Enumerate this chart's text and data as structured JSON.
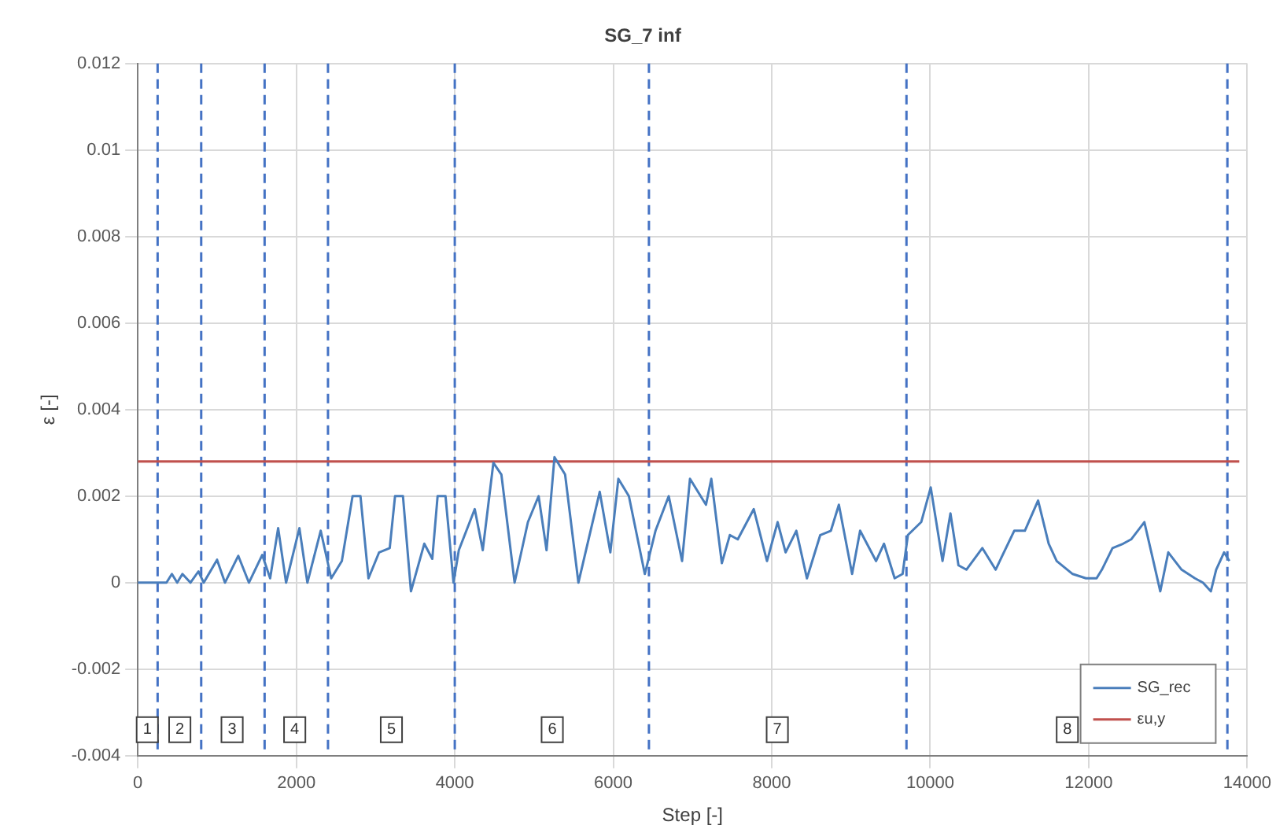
{
  "chart_data": {
    "type": "line",
    "title": "SG_7 inf",
    "xlabel": "Step [-]",
    "ylabel": "ε [-]",
    "xlim": [
      0,
      14000
    ],
    "xticks": [
      0,
      2000,
      4000,
      6000,
      8000,
      10000,
      12000,
      14000
    ],
    "ylim": [
      -0.004,
      0.012
    ],
    "yticks": [
      -0.004,
      -0.002,
      0,
      0.002,
      0.004,
      0.006,
      0.008,
      0.01,
      0.012
    ],
    "grid": true,
    "legend": "bottom right",
    "marker": "none",
    "line_style": "solid",
    "series": [
      {
        "name": "SG_rec",
        "color": "#4a7ebb",
        "x": [
          0,
          362,
          430,
          497,
          563,
          664,
          765,
          832,
          1000,
          1100,
          1268,
          1402,
          1570,
          1670,
          1771,
          1871,
          2039,
          2140,
          2308,
          2441,
          2575,
          2710,
          2810,
          2911,
          3045,
          3179,
          3246,
          3346,
          3447,
          3615,
          3716,
          3783,
          3883,
          3984,
          4051,
          4252,
          4353,
          4487,
          4588,
          4755,
          4923,
          5058,
          5158,
          5258,
          5392,
          5560,
          5829,
          5963,
          6064,
          6197,
          6398,
          6533,
          6700,
          6868,
          6968,
          7069,
          7170,
          7237,
          7370,
          7471,
          7571,
          7773,
          7940,
          8074,
          8175,
          8310,
          8444,
          8612,
          8746,
          8847,
          9014,
          9115,
          9316,
          9416,
          9551,
          9651,
          9718,
          9886,
          10006,
          10155,
          10255,
          10356,
          10456,
          10657,
          10825,
          11060,
          11194,
          11361,
          11495,
          11596,
          11797,
          11965,
          12099,
          12166,
          12300,
          12434,
          12535,
          12702,
          12803,
          12903,
          13004,
          13172,
          13340,
          13441,
          13541,
          13608,
          13708,
          13775
        ],
        "values": [
          0,
          0,
          0.0002,
          0,
          0.0002,
          0,
          0.00026,
          0,
          0.00053,
          0,
          0.00062,
          0,
          0.00064,
          0.0001,
          0.00126,
          0,
          0.00126,
          0,
          0.0012,
          0.0001,
          0.0005,
          0.002,
          0.002,
          0.0001,
          0.0007,
          0.0008,
          0.002,
          0.002,
          -0.0002,
          0.0009,
          0.00055,
          0.002,
          0.002,
          0,
          0.00075,
          0.0017,
          0.00075,
          0.00277,
          0.0025,
          0,
          0.0014,
          0.002,
          0.00075,
          0.0029,
          0.0025,
          0,
          0.0021,
          0.0007,
          0.0024,
          0.002,
          0.0002,
          0.0012,
          0.002,
          0.0005,
          0.0024,
          0.0021,
          0.0018,
          0.0024,
          0.00045,
          0.0011,
          0.001,
          0.0017,
          0.0005,
          0.0014,
          0.0007,
          0.0012,
          0.0001,
          0.0011,
          0.0012,
          0.0018,
          0.0002,
          0.0012,
          0.0005,
          0.0009,
          0.0001,
          0.0002,
          0.0011,
          0.0014,
          0.0022,
          0.0005,
          0.0016,
          0.0004,
          0.0003,
          0.0008,
          0.0003,
          0.0012,
          0.0012,
          0.0019,
          0.0009,
          0.0005,
          0.0002,
          0.0001,
          0.0001,
          0.0003,
          0.0008,
          0.0009,
          0.001,
          0.0014,
          0.0006,
          -0.0002,
          0.0007,
          0.0003,
          0.0001,
          0,
          -0.0002,
          0.0003,
          0.0007,
          0.0005
        ]
      },
      {
        "name": "εu,y",
        "color": "#c0504d",
        "x": [
          0,
          13900
        ],
        "values": [
          0.0028,
          0.0028
        ]
      }
    ],
    "ref_lines": [
      {
        "axis": "x",
        "value": 250,
        "color": "#4472c4",
        "line_style": "dashed"
      },
      {
        "axis": "x",
        "value": 800,
        "color": "#4472c4",
        "line_style": "dashed"
      },
      {
        "axis": "x",
        "value": 1600,
        "color": "#4472c4",
        "line_style": "dashed"
      },
      {
        "axis": "x",
        "value": 2400,
        "color": "#4472c4",
        "line_style": "dashed"
      },
      {
        "axis": "x",
        "value": 4000,
        "color": "#4472c4",
        "line_style": "dashed"
      },
      {
        "axis": "x",
        "value": 6450,
        "color": "#4472c4",
        "line_style": "dashed"
      },
      {
        "axis": "x",
        "value": 9700,
        "color": "#4472c4",
        "line_style": "dashed"
      },
      {
        "axis": "x",
        "value": 13750,
        "color": "#4472c4",
        "line_style": "dashed"
      }
    ],
    "annotations": [
      {
        "text": "1",
        "x": 120,
        "y": -0.0034
      },
      {
        "text": "2",
        "x": 530,
        "y": -0.0034
      },
      {
        "text": "3",
        "x": 1190,
        "y": -0.0034
      },
      {
        "text": "4",
        "x": 1980,
        "y": -0.0034
      },
      {
        "text": "5",
        "x": 3200,
        "y": -0.0034
      },
      {
        "text": "6",
        "x": 5230,
        "y": -0.0034
      },
      {
        "text": "7",
        "x": 8070,
        "y": -0.0034
      },
      {
        "text": "8",
        "x": 11730,
        "y": -0.0034
      }
    ]
  }
}
